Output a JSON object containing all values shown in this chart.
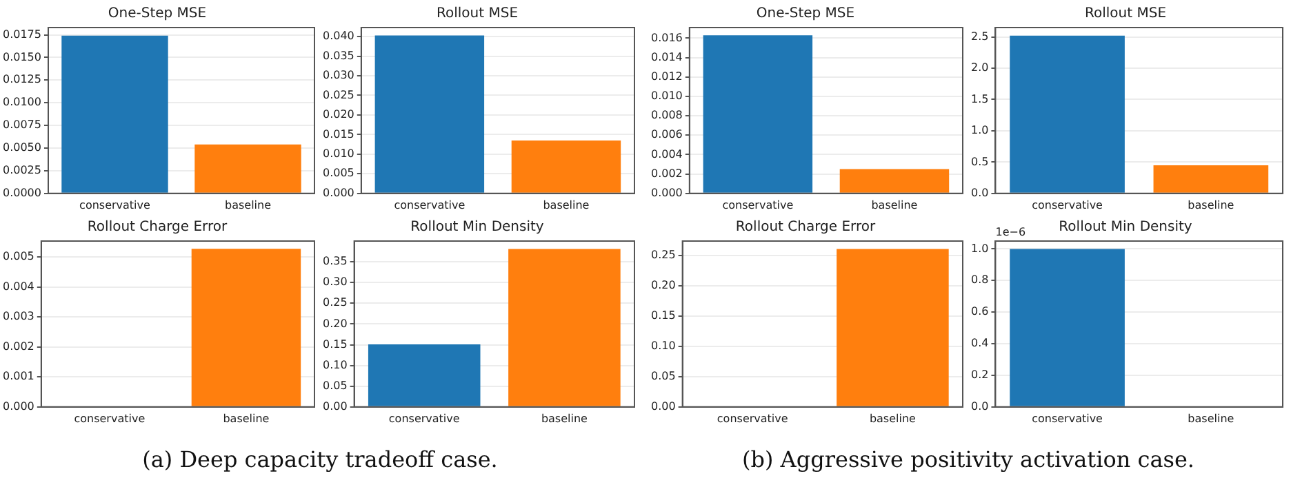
{
  "chart_data": [
    {
      "type": "bar",
      "title": "One-Step MSE",
      "categories": [
        "conservative",
        "baseline"
      ],
      "values": [
        0.0174,
        0.0054
      ],
      "colors": [
        "#1f77b4",
        "#ff7f0e"
      ],
      "ylim": [
        0,
        0.0183
      ],
      "yticks": [
        {
          "value": 0,
          "label": "0.0000"
        },
        {
          "value": 0.0025,
          "label": "0.0025"
        },
        {
          "value": 0.005,
          "label": "0.0050"
        },
        {
          "value": 0.0075,
          "label": "0.0075"
        },
        {
          "value": 0.01,
          "label": "0.0100"
        },
        {
          "value": 0.0125,
          "label": "0.0125"
        },
        {
          "value": 0.015,
          "label": "0.0150"
        },
        {
          "value": 0.0175,
          "label": "0.0175"
        }
      ],
      "grid": "y",
      "legend": false,
      "annotations": [
        "(a) Deep capacity tradeoff case."
      ]
    },
    {
      "type": "bar",
      "title": "Rollout MSE",
      "categories": [
        "conservative",
        "baseline"
      ],
      "values": [
        0.0403,
        0.0135
      ],
      "colors": [
        "#1f77b4",
        "#ff7f0e"
      ],
      "ylim": [
        0,
        0.0423
      ],
      "yticks": [
        {
          "value": 0,
          "label": "0.000"
        },
        {
          "value": 0.005,
          "label": "0.005"
        },
        {
          "value": 0.01,
          "label": "0.010"
        },
        {
          "value": 0.015,
          "label": "0.015"
        },
        {
          "value": 0.02,
          "label": "0.020"
        },
        {
          "value": 0.025,
          "label": "0.025"
        },
        {
          "value": 0.03,
          "label": "0.030"
        },
        {
          "value": 0.035,
          "label": "0.035"
        },
        {
          "value": 0.04,
          "label": "0.040"
        }
      ],
      "grid": "y",
      "legend": false
    },
    {
      "type": "bar",
      "title": "Rollout Charge Error",
      "categories": [
        "conservative",
        "baseline"
      ],
      "values": [
        0,
        0.00527
      ],
      "colors": [
        "#1f77b4",
        "#ff7f0e"
      ],
      "ylim": [
        0,
        0.00553
      ],
      "yticks": [
        {
          "value": 0,
          "label": "0.000"
        },
        {
          "value": 0.001,
          "label": "0.001"
        },
        {
          "value": 0.002,
          "label": "0.002"
        },
        {
          "value": 0.003,
          "label": "0.003"
        },
        {
          "value": 0.004,
          "label": "0.004"
        },
        {
          "value": 0.005,
          "label": "0.005"
        }
      ],
      "grid": "y",
      "legend": false
    },
    {
      "type": "bar",
      "title": "Rollout Min Density",
      "categories": [
        "conservative",
        "baseline"
      ],
      "values": [
        0.151,
        0.381
      ],
      "colors": [
        "#1f77b4",
        "#ff7f0e"
      ],
      "ylim": [
        0,
        0.4
      ],
      "yticks": [
        {
          "value": 0,
          "label": "0.00"
        },
        {
          "value": 0.05,
          "label": "0.05"
        },
        {
          "value": 0.1,
          "label": "0.10"
        },
        {
          "value": 0.15,
          "label": "0.15"
        },
        {
          "value": 0.2,
          "label": "0.20"
        },
        {
          "value": 0.25,
          "label": "0.25"
        },
        {
          "value": 0.3,
          "label": "0.30"
        },
        {
          "value": 0.35,
          "label": "0.35"
        }
      ],
      "grid": "y",
      "legend": false
    },
    {
      "type": "bar",
      "title": "One-Step MSE",
      "categories": [
        "conservative",
        "baseline"
      ],
      "values": [
        0.0163,
        0.0025
      ],
      "colors": [
        "#1f77b4",
        "#ff7f0e"
      ],
      "ylim": [
        0,
        0.0171
      ],
      "yticks": [
        {
          "value": 0,
          "label": "0.000"
        },
        {
          "value": 0.002,
          "label": "0.002"
        },
        {
          "value": 0.004,
          "label": "0.004"
        },
        {
          "value": 0.006,
          "label": "0.006"
        },
        {
          "value": 0.008,
          "label": "0.008"
        },
        {
          "value": 0.01,
          "label": "0.010"
        },
        {
          "value": 0.012,
          "label": "0.012"
        },
        {
          "value": 0.014,
          "label": "0.014"
        },
        {
          "value": 0.016,
          "label": "0.016"
        }
      ],
      "grid": "y",
      "legend": false,
      "annotations": [
        "(b) Aggressive positivity activation case."
      ]
    },
    {
      "type": "bar",
      "title": "Rollout MSE",
      "categories": [
        "conservative",
        "baseline"
      ],
      "values": [
        2.52,
        0.45
      ],
      "colors": [
        "#1f77b4",
        "#ff7f0e"
      ],
      "ylim": [
        0,
        2.65
      ],
      "yticks": [
        {
          "value": 0,
          "label": "0.0"
        },
        {
          "value": 0.5,
          "label": "0.5"
        },
        {
          "value": 1,
          "label": "1.0"
        },
        {
          "value": 1.5,
          "label": "1.5"
        },
        {
          "value": 2,
          "label": "2.0"
        },
        {
          "value": 2.5,
          "label": "2.5"
        }
      ],
      "grid": "y",
      "legend": false
    },
    {
      "type": "bar",
      "title": "Rollout Charge Error",
      "categories": [
        "conservative",
        "baseline"
      ],
      "values": [
        0,
        0.261
      ],
      "colors": [
        "#1f77b4",
        "#ff7f0e"
      ],
      "ylim": [
        0,
        0.274
      ],
      "yticks": [
        {
          "value": 0,
          "label": "0.00"
        },
        {
          "value": 0.05,
          "label": "0.05"
        },
        {
          "value": 0.1,
          "label": "0.10"
        },
        {
          "value": 0.15,
          "label": "0.15"
        },
        {
          "value": 0.2,
          "label": "0.20"
        },
        {
          "value": 0.25,
          "label": "0.25"
        }
      ],
      "grid": "y",
      "legend": false
    },
    {
      "type": "bar",
      "title": "Rollout Min Density",
      "categories": [
        "conservative",
        "baseline"
      ],
      "values": [
        1.0,
        0
      ],
      "colors": [
        "#1f77b4",
        "#ff7f0e"
      ],
      "ylim": [
        0,
        1.05
      ],
      "yticks": [
        {
          "value": 0,
          "label": "0.0"
        },
        {
          "value": 0.2,
          "label": "0.2"
        },
        {
          "value": 0.4,
          "label": "0.4"
        },
        {
          "value": 0.6,
          "label": "0.6"
        },
        {
          "value": 0.8,
          "label": "0.8"
        },
        {
          "value": 1,
          "label": "1.0"
        }
      ],
      "grid": "y",
      "legend": false,
      "annotations": [
        "1e−6"
      ]
    }
  ]
}
